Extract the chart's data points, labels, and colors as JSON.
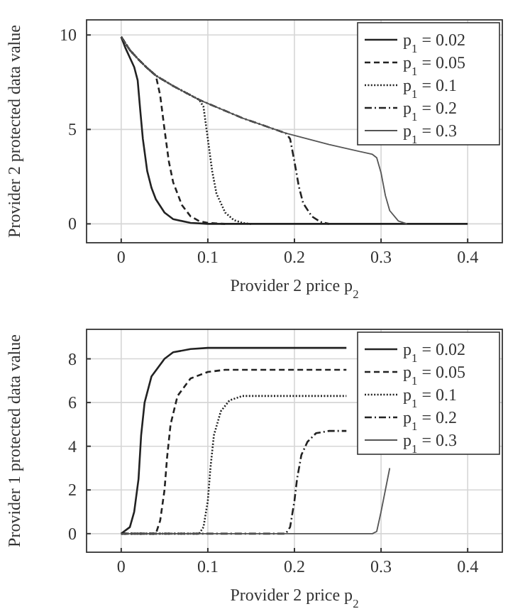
{
  "chart_data": [
    {
      "type": "line",
      "xlabel": "Provider 2 price p$_{2}$",
      "ylabel": "Provider 2 protected data value",
      "xlim": [
        -0.04,
        0.44
      ],
      "ylim": [
        -1,
        10.8
      ],
      "xticks": [
        0,
        0.1,
        0.2,
        0.3,
        0.4
      ],
      "yticks": [
        0,
        5,
        10
      ],
      "grid": true,
      "legend": "top right",
      "series": [
        {
          "name": "p$_{1}$ = 0.02",
          "color": "#222222",
          "line_style": "solid",
          "x": [
            0,
            0.005,
            0.01,
            0.015,
            0.019,
            0.022,
            0.025,
            0.03,
            0.035,
            0.04,
            0.05,
            0.06,
            0.08,
            0.1,
            0.4
          ],
          "values": [
            9.9,
            9.3,
            8.8,
            8.3,
            7.6,
            6,
            4.5,
            2.8,
            1.9,
            1.3,
            0.6,
            0.25,
            0.05,
            0,
            0
          ]
        },
        {
          "name": "p$_{1}$ = 0.05",
          "color": "#222222",
          "line_style": "dashed",
          "x": [
            0,
            0.01,
            0.02,
            0.03,
            0.04,
            0.045,
            0.05,
            0.055,
            0.06,
            0.07,
            0.08,
            0.09,
            0.1,
            0.12
          ],
          "values": [
            9.9,
            9.2,
            8.7,
            8.25,
            7.85,
            6.8,
            5,
            3.3,
            2.2,
            1,
            0.4,
            0.15,
            0.05,
            0
          ]
        },
        {
          "name": "p$_{1}$ = 0.1",
          "color": "#222222",
          "line_style": "dotted",
          "x": [
            0,
            0.01,
            0.02,
            0.03,
            0.04,
            0.06,
            0.09,
            0.095,
            0.1,
            0.105,
            0.11,
            0.12,
            0.13,
            0.14,
            0.15
          ],
          "values": [
            9.9,
            9.2,
            8.7,
            8.25,
            7.85,
            7.3,
            6.57,
            6.2,
            4.5,
            2.8,
            1.6,
            0.6,
            0.2,
            0.05,
            0
          ]
        },
        {
          "name": "p$_{1}$ = 0.2",
          "color": "#222222",
          "line_style": "dashdot",
          "x": [
            0,
            0.01,
            0.02,
            0.03,
            0.04,
            0.06,
            0.09,
            0.14,
            0.19,
            0.195,
            0.2,
            0.205,
            0.21,
            0.22,
            0.23,
            0.24
          ],
          "values": [
            9.9,
            9.2,
            8.7,
            8.25,
            7.85,
            7.3,
            6.57,
            5.6,
            4.8,
            4.5,
            3.3,
            2,
            1.1,
            0.4,
            0.1,
            0
          ]
        },
        {
          "name": "p$_{1}$ = 0.3",
          "color": "#555555",
          "line_style": "solid",
          "x": [
            0,
            0.01,
            0.02,
            0.03,
            0.04,
            0.06,
            0.09,
            0.14,
            0.19,
            0.24,
            0.29,
            0.295,
            0.3,
            0.305,
            0.31,
            0.32,
            0.33
          ],
          "values": [
            9.9,
            9.2,
            8.7,
            8.25,
            7.85,
            7.3,
            6.57,
            5.6,
            4.8,
            4.2,
            3.68,
            3.5,
            2.7,
            1.5,
            0.7,
            0.15,
            0
          ]
        }
      ]
    },
    {
      "type": "line",
      "xlabel": "Provider 2 price p$_{2}$",
      "ylabel": "Provider 1 protected data value",
      "xlim": [
        -0.04,
        0.44
      ],
      "ylim": [
        -0.85,
        9.35
      ],
      "xticks": [
        0,
        0.1,
        0.2,
        0.3,
        0.4
      ],
      "yticks": [
        0,
        2,
        4,
        6,
        8
      ],
      "grid": true,
      "legend": "top right",
      "series": [
        {
          "name": "p$_{1}$ = 0.02",
          "color": "#222222",
          "line_style": "solid",
          "x": [
            0,
            0.01,
            0.015,
            0.02,
            0.023,
            0.027,
            0.035,
            0.05,
            0.06,
            0.08,
            0.1,
            0.26
          ],
          "values": [
            0,
            0.3,
            1,
            2.5,
            4.5,
            6,
            7.2,
            8,
            8.3,
            8.45,
            8.5,
            8.5
          ]
        },
        {
          "name": "p$_{1}$ = 0.05",
          "color": "#222222",
          "line_style": "dashed",
          "x": [
            0,
            0.04,
            0.045,
            0.05,
            0.053,
            0.057,
            0.065,
            0.08,
            0.1,
            0.12,
            0.26
          ],
          "values": [
            0,
            0,
            0.6,
            2,
            3.5,
            5,
            6.3,
            7.1,
            7.4,
            7.5,
            7.5
          ]
        },
        {
          "name": "p$_{1}$ = 0.1",
          "color": "#222222",
          "line_style": "dotted",
          "x": [
            0,
            0.09,
            0.095,
            0.1,
            0.103,
            0.107,
            0.115,
            0.125,
            0.14,
            0.26
          ],
          "values": [
            0,
            0,
            0.3,
            1.5,
            3,
            4.5,
            5.6,
            6.1,
            6.3,
            6.3
          ]
        },
        {
          "name": "p$_{1}$ = 0.2",
          "color": "#222222",
          "line_style": "dashdot",
          "x": [
            0,
            0.19,
            0.195,
            0.2,
            0.203,
            0.208,
            0.215,
            0.225,
            0.24,
            0.26
          ],
          "values": [
            0,
            0,
            0.3,
            1.5,
            2.5,
            3.6,
            4.2,
            4.6,
            4.7,
            4.7
          ]
        },
        {
          "name": "p$_{1}$ = 0.3",
          "color": "#555555",
          "line_style": "solid",
          "x": [
            0,
            0.29,
            0.295,
            0.3,
            0.305,
            0.31
          ],
          "values": [
            0,
            0,
            0.1,
            1,
            2,
            3
          ]
        }
      ]
    }
  ]
}
